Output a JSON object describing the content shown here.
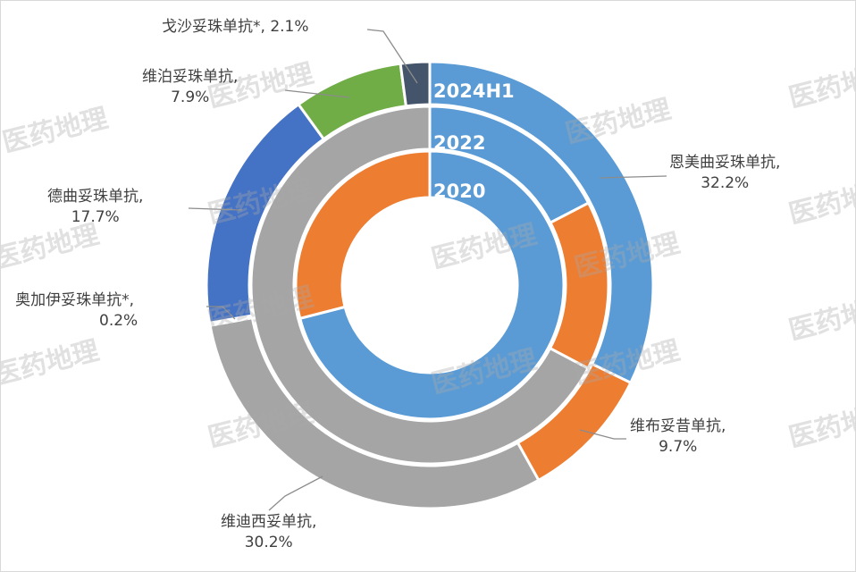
{
  "chart_data": {
    "type": "donut",
    "rings": [
      {
        "name": "2020",
        "values": [
          71,
          29
        ],
        "colors": [
          "#5b9bd5",
          "#ed7d31"
        ]
      },
      {
        "name": "2022",
        "values": [
          17.4,
          15.3,
          67.3
        ],
        "colors": [
          "#5b9bd5",
          "#ed7d31",
          "#a5a5a5"
        ]
      },
      {
        "name": "2024H1",
        "categories": [
          "恩美曲妥珠单抗,",
          "维布妥昔单抗,",
          "维迪西妥单抗,",
          "奥加伊妥珠单抗*,",
          "德曲妥珠单抗,",
          "维泊妥珠单抗,",
          "戈沙妥珠单抗*,"
        ],
        "values": [
          32.2,
          9.7,
          30.2,
          0.2,
          17.7,
          7.9,
          2.1
        ],
        "labels": [
          "32.2%",
          "9.7%",
          "30.2%",
          "0.2%",
          "17.7%",
          "7.9%",
          "2.1%"
        ],
        "colors": [
          "#5b9bd5",
          "#ed7d31",
          "#a5a5a5",
          "#a5a5a5",
          "#4472c4",
          "#70ad47",
          "#44546a"
        ]
      }
    ],
    "legend": "none"
  },
  "watermark": "医药地理"
}
